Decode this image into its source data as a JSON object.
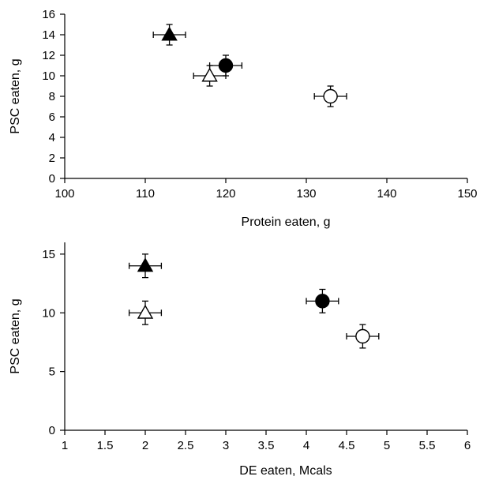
{
  "chart_data": [
    {
      "type": "scatter",
      "xlabel": "Protein eaten, g",
      "ylabel": "PSC eaten, g",
      "xlim": [
        100,
        150
      ],
      "ylim": [
        0,
        16
      ],
      "xticks": [
        100,
        110,
        120,
        130,
        140,
        150
      ],
      "yticks": [
        0,
        2,
        4,
        6,
        8,
        10,
        12,
        14,
        16
      ],
      "grid": false,
      "points": [
        {
          "marker": "filled-triangle",
          "x": 113,
          "y": 14,
          "xerr": 2,
          "yerr": 1
        },
        {
          "marker": "open-triangle",
          "x": 118,
          "y": 10,
          "xerr": 2,
          "yerr": 1
        },
        {
          "marker": "filled-circle",
          "x": 120,
          "y": 11,
          "xerr": 2,
          "yerr": 1
        },
        {
          "marker": "open-circle",
          "x": 133,
          "y": 8,
          "xerr": 2,
          "yerr": 1
        }
      ]
    },
    {
      "type": "scatter",
      "xlabel": "DE eaten, Mcals",
      "ylabel": "PSC eaten, g",
      "xlim": [
        1,
        6
      ],
      "ylim": [
        0,
        16
      ],
      "xticks": [
        1,
        1.5,
        2,
        2.5,
        3,
        3.5,
        4,
        4.5,
        5,
        5.5,
        6
      ],
      "yticks": [
        0,
        5,
        10,
        15
      ],
      "grid": false,
      "points": [
        {
          "marker": "filled-triangle",
          "x": 2,
          "y": 14,
          "xerr": 0.2,
          "yerr": 1
        },
        {
          "marker": "open-triangle",
          "x": 2,
          "y": 10,
          "xerr": 0.2,
          "yerr": 1
        },
        {
          "marker": "filled-circle",
          "x": 4.2,
          "y": 11,
          "xerr": 0.2,
          "yerr": 1
        },
        {
          "marker": "open-circle",
          "x": 4.7,
          "y": 8,
          "xerr": 0.2,
          "yerr": 1
        }
      ]
    }
  ]
}
